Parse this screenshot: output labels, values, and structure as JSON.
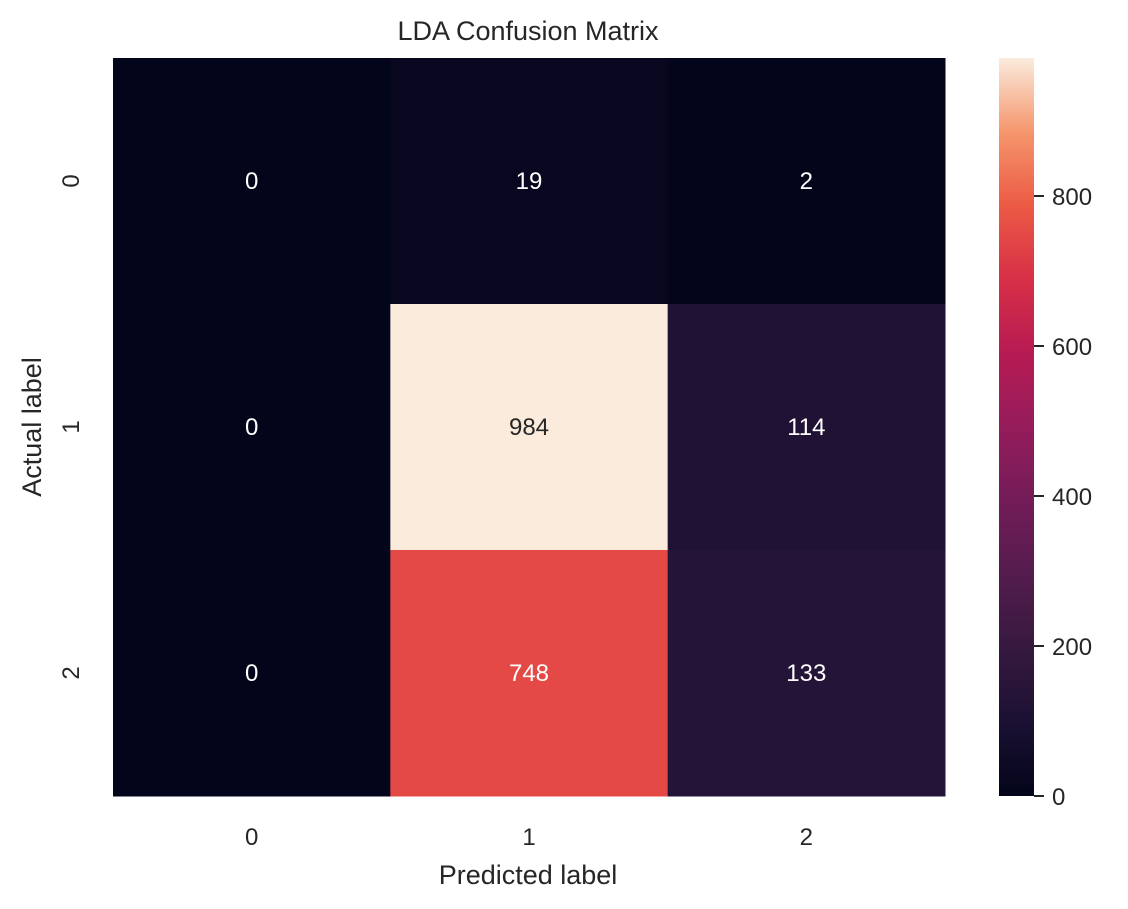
{
  "chart_data": {
    "type": "heatmap",
    "title": "LDA Confusion Matrix",
    "xlabel": "Predicted label",
    "ylabel": "Actual label",
    "x_categories": [
      "0",
      "1",
      "2"
    ],
    "y_categories": [
      "0",
      "1",
      "2"
    ],
    "values": [
      [
        0,
        19,
        2
      ],
      [
        0,
        984,
        114
      ],
      [
        0,
        748,
        133
      ]
    ],
    "colormap": "rocket",
    "vmin": 0,
    "vmax": 984,
    "colorbar_ticks": [
      0,
      200,
      400,
      600,
      800
    ]
  }
}
